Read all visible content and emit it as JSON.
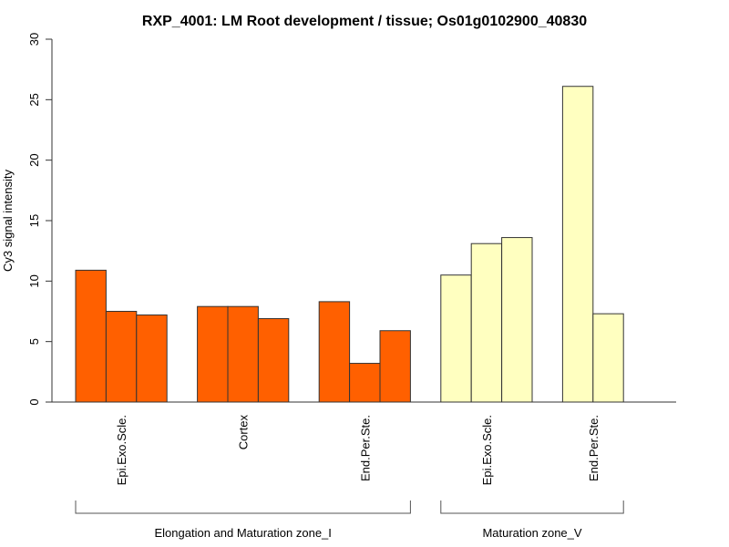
{
  "chart_data": {
    "type": "bar",
    "title": "RXP_4001: LM Root development / tissue; Os01g0102900_40830",
    "xlabel": "",
    "ylabel": "Cy3 signal intensity",
    "ylim": [
      0,
      30
    ],
    "yticks": [
      "0",
      "5",
      "10",
      "15",
      "20",
      "25",
      "30"
    ],
    "grid": false,
    "groups": [
      {
        "name": "Elongation and Maturation zone_I",
        "color": "#ff6000",
        "tissues": [
          {
            "label": "Epi.Exo.Scle.",
            "values": [
              10.9,
              7.5,
              7.2
            ]
          },
          {
            "label": "Cortex",
            "values": [
              7.9,
              7.9,
              6.9
            ]
          },
          {
            "label": "End.Per.Ste.",
            "values": [
              8.3,
              3.2,
              5.9
            ]
          }
        ]
      },
      {
        "name": "Maturation zone_V",
        "color": "#ffffc0",
        "tissues": [
          {
            "label": "Epi.Exo.Scle.",
            "values": [
              10.5,
              13.1,
              13.6
            ]
          },
          {
            "label": "End.Per.Ste.",
            "values": [
              26.1,
              7.3
            ]
          }
        ]
      }
    ]
  }
}
